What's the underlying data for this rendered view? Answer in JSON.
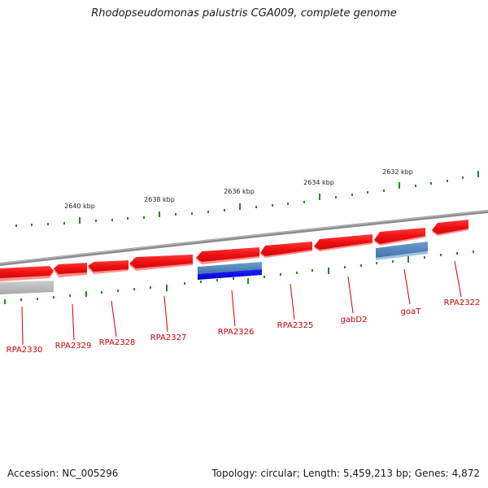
{
  "title": "Rhodopseudomonas palustris CGA009, complete genome",
  "footer": {
    "accession": "Accession: NC_005296",
    "summary": "Topology: circular; Length: 5,459,213 bp; Genes: 4,872"
  },
  "kbp_labels": [
    "2640 kbp",
    "2638 kbp",
    "2636 kbp",
    "2634 kbp",
    "2632 kbp"
  ],
  "genes": [
    "RPA2330",
    "RPA2329",
    "RPA2328",
    "RPA2327",
    "RPA2326",
    "RPA2325",
    "gabD2",
    "goaT",
    "RPA2322"
  ],
  "colors": {
    "gene": "#ee1111",
    "rna_light": "#4a7fb5",
    "rna_dark": "#0000dd",
    "pseudo": "#bbbbbb",
    "backbone": "#808080",
    "ticks": "#1e8c1e",
    "label": "#cc0000"
  }
}
